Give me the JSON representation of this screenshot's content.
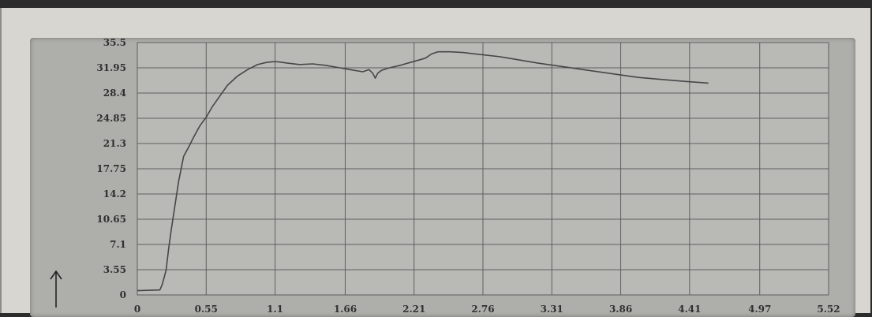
{
  "colors": {
    "screen_background": "#d8d6d0",
    "frame_background": "#aeaeaa",
    "plot_background": "#b9b9b6",
    "grid": "#5e5e5e",
    "curve": "#474747",
    "tick_text": "#303030"
  },
  "chart_data": {
    "type": "line",
    "title": "",
    "xlabel": "",
    "ylabel": "",
    "grid": true,
    "legend": "none",
    "xlim": [
      0,
      5.52
    ],
    "ylim": [
      0,
      35.5
    ],
    "x_ticks": [
      "0",
      "0.55",
      "1.1",
      "1.66",
      "2.21",
      "2.76",
      "3.31",
      "3.86",
      "4.41",
      "4.97",
      "5.52"
    ],
    "y_ticks": [
      "35.5",
      "31.95",
      "28.4",
      "24.85",
      "21.3",
      "17.75",
      "14.2",
      "10.65",
      "7.1",
      "3.55",
      "0"
    ],
    "series": [
      {
        "x": [
          0,
          0.18,
          0.2,
          0.23,
          0.25,
          0.27,
          0.3,
          0.33,
          0.37,
          0.41,
          0.45,
          0.5,
          0.55,
          0.6,
          0.66,
          0.72,
          0.8,
          0.88,
          0.96,
          1.03,
          1.08,
          1.12,
          1.2,
          1.3,
          1.4,
          1.5,
          1.6,
          1.7,
          1.8,
          1.85,
          1.88,
          1.9,
          1.92,
          1.95,
          2.0,
          2.1,
          2.2,
          2.3,
          2.35,
          2.4,
          2.5,
          2.6,
          2.7,
          2.8,
          2.9,
          3.0,
          3.2,
          3.4,
          3.6,
          3.8,
          4.0,
          4.2,
          4.4,
          4.56
        ],
        "y": [
          0.6,
          0.7,
          1.5,
          3.5,
          6.5,
          9.0,
          12.5,
          16.0,
          19.5,
          20.8,
          22.2,
          23.8,
          25.0,
          26.5,
          28.0,
          29.5,
          30.8,
          31.7,
          32.4,
          32.7,
          32.8,
          32.8,
          32.6,
          32.4,
          32.5,
          32.3,
          32.0,
          31.7,
          31.4,
          31.7,
          31.2,
          30.5,
          31.2,
          31.6,
          31.9,
          32.3,
          32.8,
          33.3,
          33.9,
          34.2,
          34.2,
          34.1,
          33.9,
          33.7,
          33.5,
          33.2,
          32.6,
          32.1,
          31.6,
          31.1,
          30.6,
          30.3,
          30.0,
          29.8
        ]
      }
    ]
  }
}
